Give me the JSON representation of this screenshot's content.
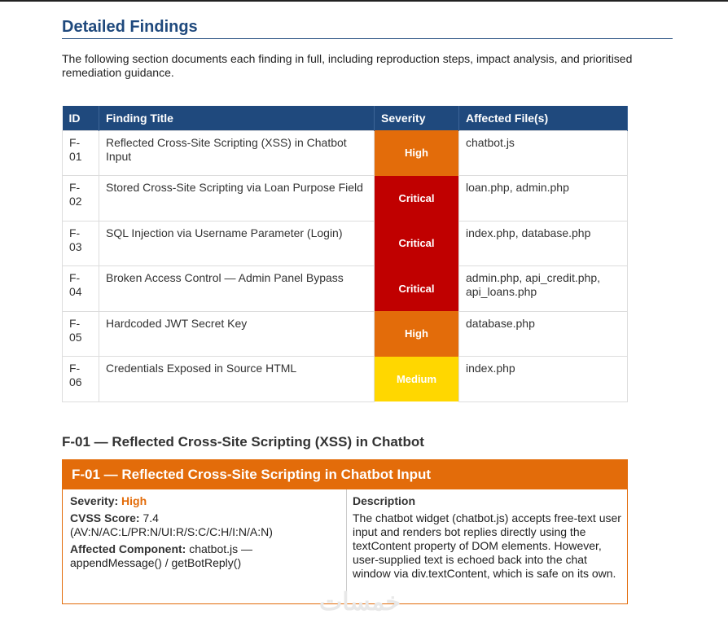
{
  "section": {
    "title": "Detailed Findings",
    "intro": "The following section documents each finding in full, including reproduction steps, impact analysis, and prioritised remediation guidance."
  },
  "table": {
    "headers": [
      "ID",
      "Finding Title",
      "Severity",
      "Affected File(s)"
    ],
    "rows": [
      {
        "id": "F-01",
        "title": "Reflected Cross-Site Scripting (XSS) in Chatbot Input",
        "severity": "High",
        "color": "#e36c0a",
        "files": "chatbot.js"
      },
      {
        "id": "F-02",
        "title": "Stored Cross-Site Scripting via Loan Purpose Field",
        "severity": "Critical",
        "color": "#c00000",
        "files": "loan.php, admin.php"
      },
      {
        "id": "F-03",
        "title": "SQL Injection via Username Parameter (Login)",
        "severity": "Critical",
        "color": "#c00000",
        "files": "index.php, database.php"
      },
      {
        "id": "F-04",
        "title": "Broken Access Control — Admin Panel Bypass",
        "severity": "Critical",
        "color": "#c00000",
        "files": "admin.php, api_credit.php, api_loans.php"
      },
      {
        "id": "F-05",
        "title": "Hardcoded JWT Secret Key",
        "severity": "High",
        "color": "#e36c0a",
        "files": "database.php"
      },
      {
        "id": "F-06",
        "title": "Credentials Exposed in Source HTML",
        "severity": "Medium",
        "color": "#ffd700",
        "files": "index.php"
      }
    ]
  },
  "finding": {
    "heading": "F-01 — Reflected Cross-Site Scripting (XSS) in Chatbot",
    "box_title": "F-01 — Reflected Cross-Site Scripting in Chatbot Input",
    "severity_label": "Severity:",
    "severity": "High",
    "severity_color": "#e36c0a",
    "cvss_label": "CVSS Score:",
    "cvss": "7.4 (AV:N/AC:L/PR:N/UI:R/S:C/C:H/I:N/A:N)",
    "component_label": "Affected Component:",
    "component": "chatbot.js — appendMessage() / getBotReply()",
    "description_label": "Description",
    "description": "The chatbot widget (chatbot.js) accepts free-text user input and renders bot replies directly using the textContent property of DOM elements. However, user-supplied text is echoed back into the chat window via div.textContent, which is safe on its own."
  },
  "watermark": "خمسات"
}
